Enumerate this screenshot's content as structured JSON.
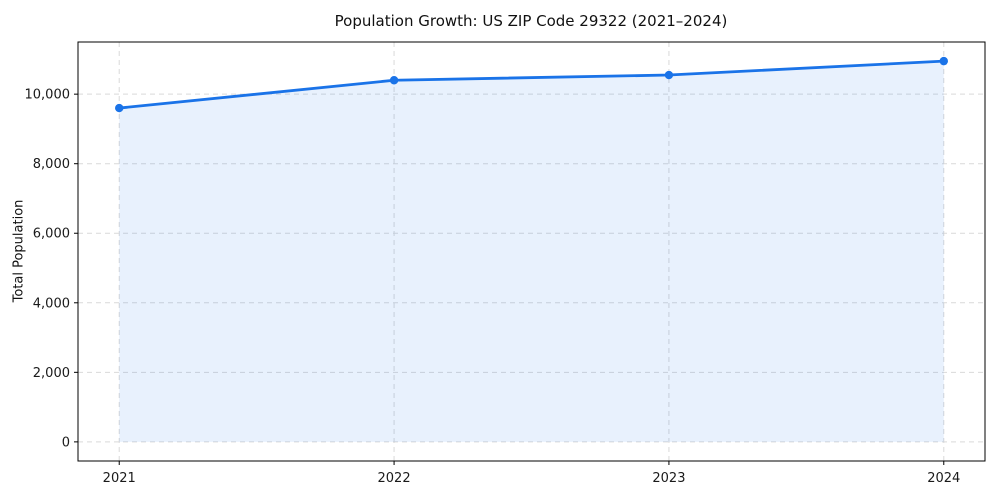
{
  "chart_data": {
    "type": "area",
    "title": "Population Growth: US ZIP Code 29322 (2021–2024)",
    "xlabel": "",
    "ylabel": "Total Population",
    "x": [
      2021,
      2022,
      2023,
      2024
    ],
    "categories": [
      "2021",
      "2022",
      "2023",
      "2024"
    ],
    "series": [
      {
        "name": "Total Population",
        "values": [
          9600,
          10400,
          10550,
          10950
        ]
      }
    ],
    "yticks": [
      0,
      2000,
      4000,
      6000,
      8000,
      10000
    ],
    "ytick_labels": [
      "0",
      "2,000",
      "4,000",
      "6,000",
      "8,000",
      "10,000"
    ],
    "xtick_labels": [
      "2021",
      "2022",
      "2023",
      "2024"
    ],
    "xlim": [
      2020.85,
      2024.15
    ],
    "ylim": [
      -550,
      11500
    ],
    "grid": true,
    "grid_style": "dashed",
    "legend": false,
    "marker": "circle",
    "fill_to_zero": true,
    "colors": {
      "line": "#1a73e8",
      "marker": "#1a73e8",
      "fill": "#1a73e8",
      "fill_opacity": 0.1,
      "grid": "#d9d9d9",
      "spine": "#000000",
      "tick_text": "#1a1a1a",
      "background": "#ffffff"
    }
  }
}
